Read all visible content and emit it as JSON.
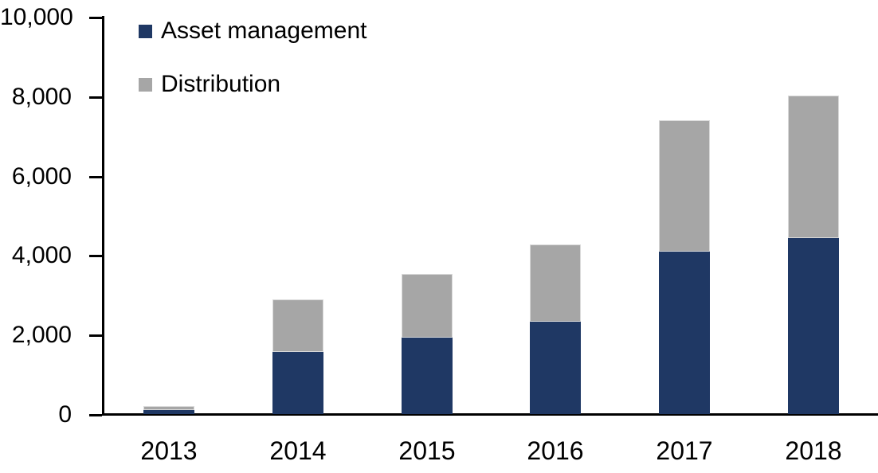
{
  "chart_data": {
    "type": "bar",
    "stacked": true,
    "title": "",
    "xlabel": "",
    "ylabel": "",
    "categories": [
      "2013",
      "2014",
      "2015",
      "2016",
      "2017",
      "2018"
    ],
    "series": [
      {
        "name": "Asset management",
        "color": "#1F3864",
        "values": [
          100,
          1560,
          1920,
          2320,
          4080,
          4430
        ]
      },
      {
        "name": "Distribution",
        "color": "#A6A6A6",
        "values": [
          100,
          1330,
          1600,
          1940,
          3310,
          3580
        ]
      }
    ],
    "totals": [
      200,
      2890,
      3520,
      4260,
      7390,
      8010
    ],
    "ylim": [
      0,
      10000
    ],
    "yticks": [
      0,
      2000,
      4000,
      6000,
      8000,
      10000
    ],
    "ytick_labels": [
      "0",
      "2,000",
      "4,000",
      "6,000",
      "8,000",
      "10,000"
    ],
    "grid": false,
    "legend_position": "top-left-inside"
  },
  "colors": {
    "axis": "#000000",
    "text": "#000000",
    "background": "#FFFFFF",
    "series_border": "#D9D9D9"
  }
}
